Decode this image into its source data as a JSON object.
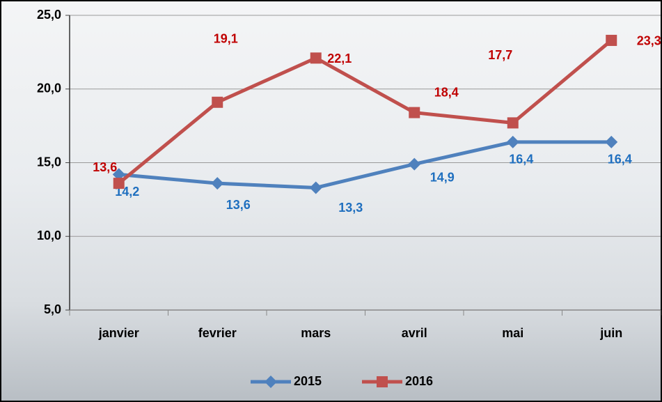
{
  "chart_data": {
    "type": "line",
    "categories": [
      "janvier",
      "fevrier",
      "mars",
      "avril",
      "mai",
      "juin"
    ],
    "series": [
      {
        "name": "2015",
        "color": "#4f81bd",
        "label_color": "#1f6fbf",
        "marker": "diamond",
        "values": [
          14.2,
          13.6,
          13.3,
          14.9,
          16.4,
          16.4
        ],
        "value_labels": [
          "14,2",
          "13,6",
          "13,3",
          "14,9",
          "16,4",
          "16,4"
        ]
      },
      {
        "name": "2016",
        "color": "#c0504d",
        "label_color": "#c00000",
        "marker": "square",
        "values": [
          13.6,
          19.1,
          22.1,
          18.4,
          17.7,
          23.3
        ],
        "value_labels": [
          "13,6",
          "19,1",
          "22,1",
          "18,4",
          "17,7",
          "23,3"
        ]
      }
    ],
    "ylim": [
      5,
      25
    ],
    "yticks": [
      {
        "value": 5,
        "label": "5,0"
      },
      {
        "value": 10,
        "label": "10,0"
      },
      {
        "value": 15,
        "label": "15,0"
      },
      {
        "value": 20,
        "label": "20,0"
      },
      {
        "value": 25,
        "label": "25,0"
      }
    ],
    "grid": true,
    "legend": "bottom"
  }
}
